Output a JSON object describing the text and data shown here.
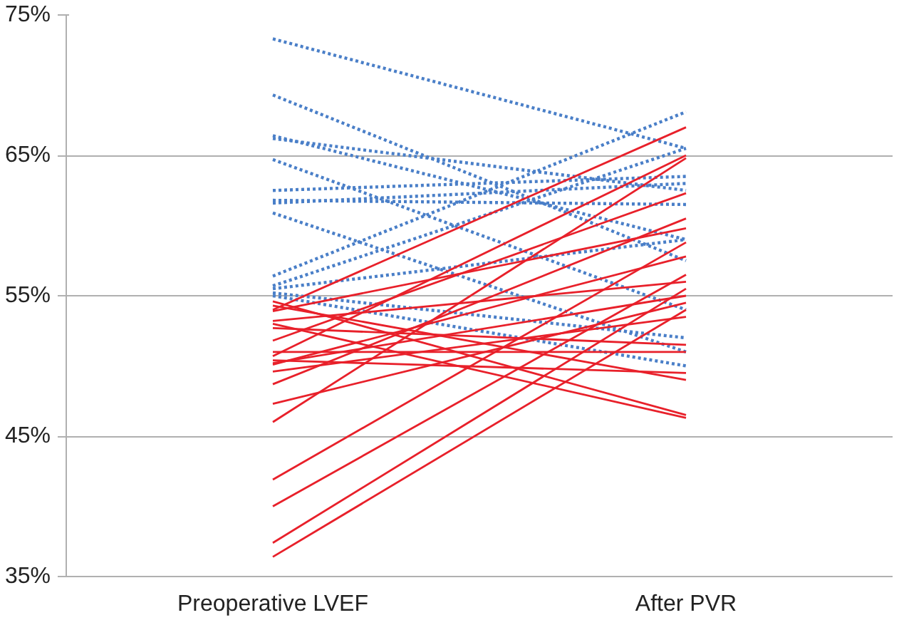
{
  "chart_data": {
    "type": "line",
    "categories": [
      "Preoperative LVEF",
      "After PVR"
    ],
    "ylim": [
      35,
      75
    ],
    "yticks": [
      {
        "value": 35,
        "label": "35%"
      },
      {
        "value": 45,
        "label": "45%"
      },
      {
        "value": 55,
        "label": "55%"
      },
      {
        "value": 65,
        "label": "65%"
      },
      {
        "value": 75,
        "label": "75%"
      }
    ],
    "grid": "y",
    "marker": "none",
    "line_style": "solid",
    "series": [
      {
        "color": "#4a7fc8",
        "line_style": "dotted",
        "values": [
          73.3,
          65.5
        ]
      },
      {
        "color": "#4a7fc8",
        "line_style": "dotted",
        "values": [
          69.3,
          57.5
        ]
      },
      {
        "color": "#4a7fc8",
        "line_style": "dotted",
        "values": [
          66.4,
          59.0
        ]
      },
      {
        "color": "#4a7fc8",
        "line_style": "dotted",
        "values": [
          66.2,
          62.5
        ]
      },
      {
        "color": "#4a7fc8",
        "line_style": "dotted",
        "values": [
          64.7,
          54.0
        ]
      },
      {
        "color": "#4a7fc8",
        "line_style": "dotted",
        "values": [
          62.5,
          63.5
        ]
      },
      {
        "color": "#4a7fc8",
        "line_style": "dotted",
        "values": [
          61.8,
          61.5
        ]
      },
      {
        "color": "#4a7fc8",
        "line_style": "dotted",
        "values": [
          61.6,
          63.0
        ]
      },
      {
        "color": "#4a7fc8",
        "line_style": "dotted",
        "values": [
          60.9,
          51.0
        ]
      },
      {
        "color": "#4a7fc8",
        "line_style": "dotted",
        "values": [
          56.4,
          68.1
        ]
      },
      {
        "color": "#4a7fc8",
        "line_style": "dotted",
        "values": [
          55.7,
          65.5
        ]
      },
      {
        "color": "#4a7fc8",
        "line_style": "dotted",
        "values": [
          55.5,
          59.0
        ]
      },
      {
        "color": "#4a7fc8",
        "line_style": "dotted",
        "values": [
          55.2,
          52.0
        ]
      },
      {
        "color": "#4a7fc8",
        "line_style": "dotted",
        "values": [
          55.0,
          50.0
        ]
      },
      {
        "color": "#e8202a",
        "values": [
          54.6,
          46.5
        ]
      },
      {
        "color": "#e8202a",
        "values": [
          54.3,
          49.0
        ]
      },
      {
        "color": "#e8202a",
        "values": [
          54.0,
          67.0
        ]
      },
      {
        "color": "#e8202a",
        "values": [
          53.9,
          59.8
        ]
      },
      {
        "color": "#e8202a",
        "values": [
          53.2,
          56.0
        ]
      },
      {
        "color": "#e8202a",
        "values": [
          53.0,
          46.3
        ]
      },
      {
        "color": "#e8202a",
        "values": [
          52.7,
          51.5
        ]
      },
      {
        "color": "#e8202a",
        "values": [
          51.8,
          62.3
        ]
      },
      {
        "color": "#e8202a",
        "values": [
          51.0,
          51.0
        ]
      },
      {
        "color": "#e8202a",
        "values": [
          50.7,
          65.0
        ]
      },
      {
        "color": "#e8202a",
        "values": [
          50.4,
          49.5
        ]
      },
      {
        "color": "#e8202a",
        "values": [
          50.2,
          55.0
        ]
      },
      {
        "color": "#e8202a",
        "values": [
          50.1,
          57.8
        ]
      },
      {
        "color": "#e8202a",
        "values": [
          49.6,
          53.5
        ]
      },
      {
        "color": "#e8202a",
        "values": [
          48.7,
          60.5
        ]
      },
      {
        "color": "#e8202a",
        "values": [
          47.3,
          54.5
        ]
      },
      {
        "color": "#e8202a",
        "values": [
          46.0,
          64.8
        ]
      },
      {
        "color": "#e8202a",
        "values": [
          41.9,
          58.8
        ]
      },
      {
        "color": "#e8202a",
        "values": [
          40.0,
          56.5
        ]
      },
      {
        "color": "#e8202a",
        "values": [
          37.4,
          55.5
        ]
      },
      {
        "color": "#e8202a",
        "values": [
          36.4,
          54.0
        ]
      }
    ]
  }
}
